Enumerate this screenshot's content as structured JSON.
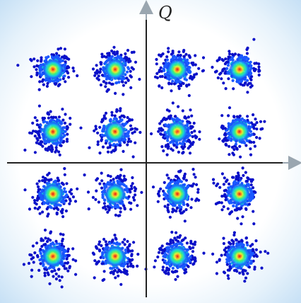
{
  "chart_data": {
    "type": "scatter",
    "title": "",
    "xlabel": "",
    "ylabel": "Q",
    "xlim": [
      -4.5,
      4.5
    ],
    "ylim": [
      -4.5,
      4.5
    ],
    "grid": false,
    "legend": "none",
    "constellation": "16-QAM",
    "clusters": [
      {
        "x": -3,
        "y": 3
      },
      {
        "x": -1,
        "y": 3
      },
      {
        "x": 1,
        "y": 3
      },
      {
        "x": 3,
        "y": 3
      },
      {
        "x": -3,
        "y": 1
      },
      {
        "x": -1,
        "y": 1
      },
      {
        "x": 1,
        "y": 1
      },
      {
        "x": 3,
        "y": 1
      },
      {
        "x": -3,
        "y": -1
      },
      {
        "x": -1,
        "y": -1
      },
      {
        "x": 1,
        "y": -1
      },
      {
        "x": 3,
        "y": -1
      },
      {
        "x": -3,
        "y": -3
      },
      {
        "x": -1,
        "y": -3
      },
      {
        "x": 1,
        "y": -3
      },
      {
        "x": 3,
        "y": -3
      }
    ],
    "point_spread": 0.28,
    "colormap": [
      "#0a10c8",
      "#1b58ff",
      "#17c9e6",
      "#3ef07a",
      "#e4f23a",
      "#ff7a1c",
      "#d7181a"
    ]
  }
}
